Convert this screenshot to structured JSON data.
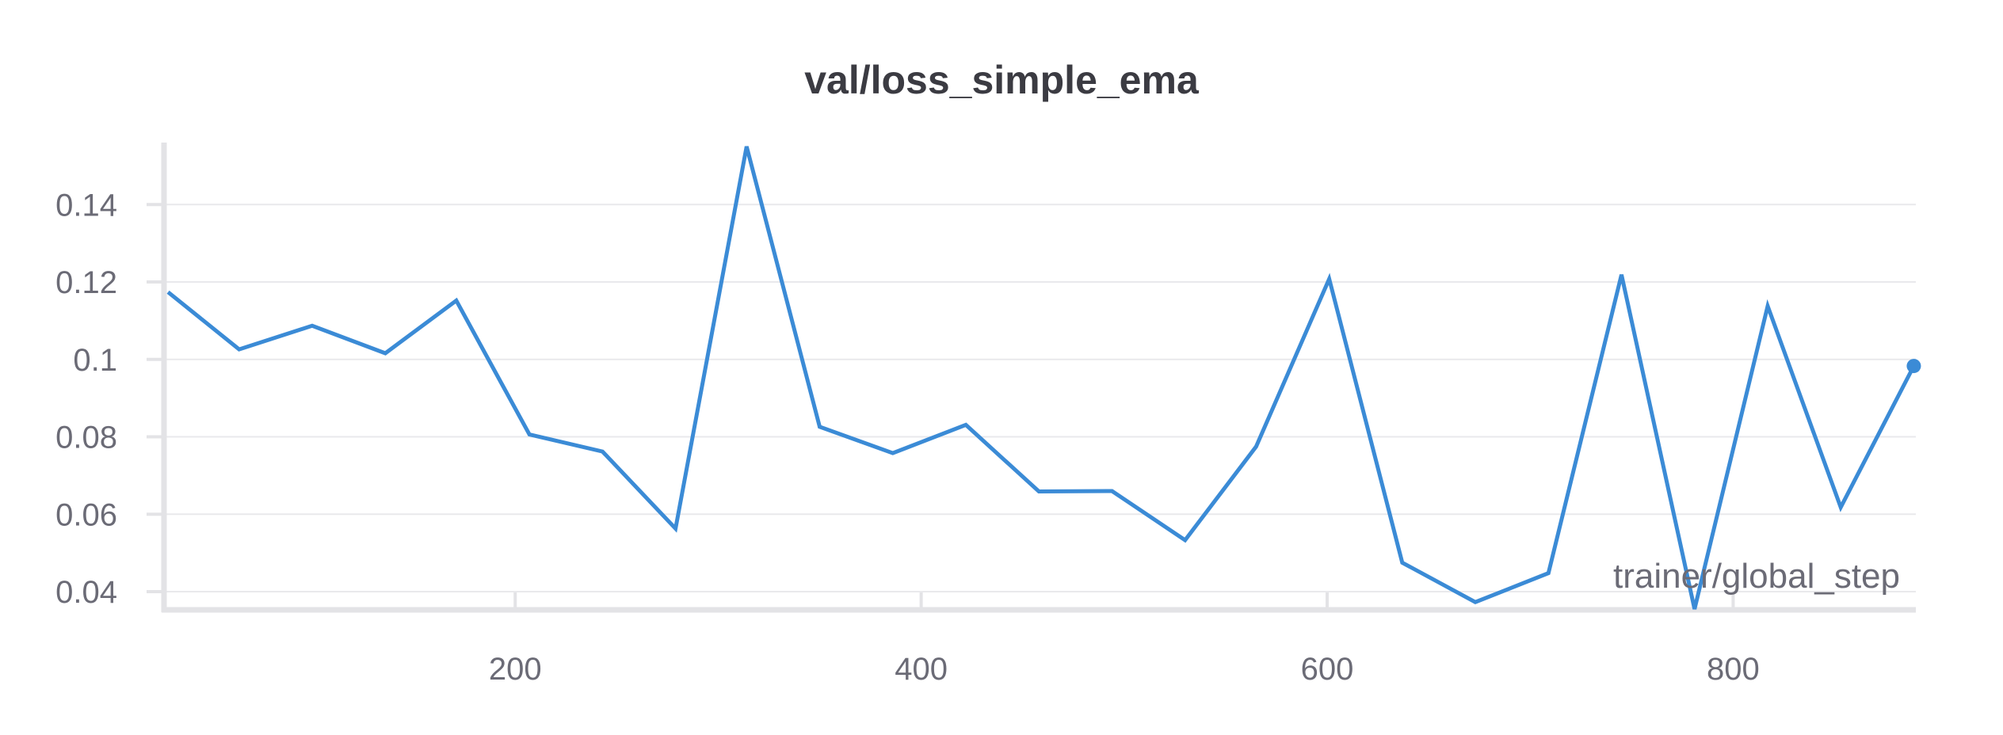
{
  "chart_data": {
    "type": "line",
    "title": "val/loss_simple_ema",
    "xlabel": "trainer/global_step",
    "ylabel": "",
    "xlim": [
      27,
      890
    ],
    "ylim": [
      0.0353,
      0.155
    ],
    "x_ticks": [
      200,
      400,
      600,
      800
    ],
    "x_tick_labels": [
      "200",
      "400",
      "600",
      "800"
    ],
    "y_ticks": [
      0.04,
      0.06,
      0.08,
      0.1,
      0.12,
      0.14
    ],
    "y_tick_labels": [
      "0.04",
      "0.06",
      "0.08",
      "0.1",
      "0.12",
      "0.14"
    ],
    "grid": true,
    "color": "#3b8bd6",
    "series": [
      {
        "x": [
          29,
          64,
          100,
          136,
          171,
          207,
          243,
          279,
          314,
          350,
          386,
          422,
          458,
          494,
          530,
          565,
          601,
          637,
          673,
          709,
          745,
          781,
          817,
          853,
          889
        ],
        "y": [
          0.1174,
          0.1026,
          0.1087,
          0.1016,
          0.1152,
          0.0806,
          0.0762,
          0.0563,
          0.155,
          0.0826,
          0.0758,
          0.0831,
          0.0659,
          0.066,
          0.0533,
          0.0775,
          0.1208,
          0.0475,
          0.0373,
          0.0448,
          0.1219,
          0.0355,
          0.1138,
          0.0618,
          0.0983
        ]
      }
    ]
  }
}
